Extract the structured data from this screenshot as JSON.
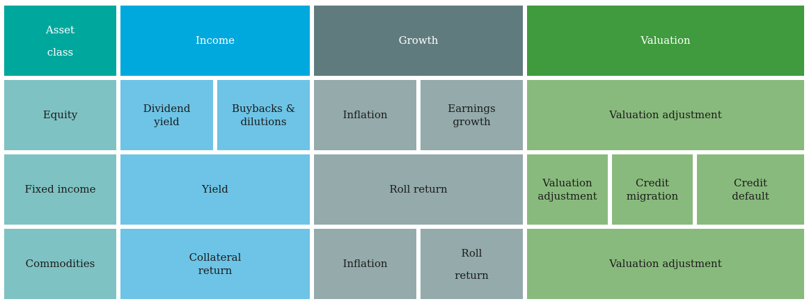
{
  "colors": {
    "header_asset_class": "#00a79d",
    "header_income": "#00a9dd",
    "header_growth": "#5f7b7e",
    "header_valuation": "#3f9b3d",
    "body_asset_class": "#7fc2c3",
    "body_income": "#6dc4e6",
    "body_growth": "#94aaab",
    "body_valuation": "#89ba7d"
  },
  "header": {
    "asset_class": "Asset\nclass",
    "income": "Income",
    "growth": "Growth",
    "valuation": "Valuation"
  },
  "rows": {
    "equity": {
      "label": "Equity",
      "dividend_yield": "Dividend\nyield",
      "buybacks": "Buybacks &\ndilutions",
      "inflation": "Inflation",
      "earnings_growth": "Earnings\ngrowth",
      "valuation_adjustment": "Valuation adjustment"
    },
    "fixed_income": {
      "label": "Fixed income",
      "yield": "Yield",
      "roll_return": "Roll return",
      "valuation_adjustment": "Valuation\nadjustment",
      "credit_migration": "Credit\nmigration",
      "credit_default": "Credit\ndefault"
    },
    "commodities": {
      "label": "Commodities",
      "collateral_return": "Collateral\nreturn",
      "inflation": "Inflation",
      "roll_return": "Roll\nreturn",
      "valuation_adjustment": "Valuation adjustment"
    }
  }
}
